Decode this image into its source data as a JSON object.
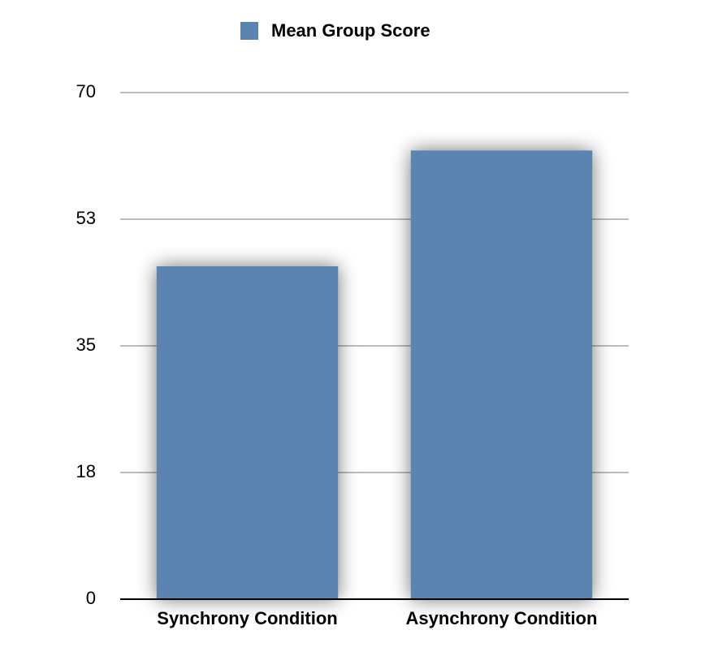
{
  "chart_data": {
    "type": "bar",
    "categories": [
      "Synchrony Condition",
      "Asynchrony Condition"
    ],
    "series": [
      {
        "name": "Mean Group Score",
        "color": "#5b84b1",
        "values": [
          46,
          62
        ]
      }
    ],
    "ylim": [
      0,
      70
    ],
    "yticks": [
      0,
      {
        "value": 17.5,
        "label": "18"
      },
      35,
      {
        "value": 52.5,
        "label": "53"
      },
      70
    ],
    "grid": true
  }
}
